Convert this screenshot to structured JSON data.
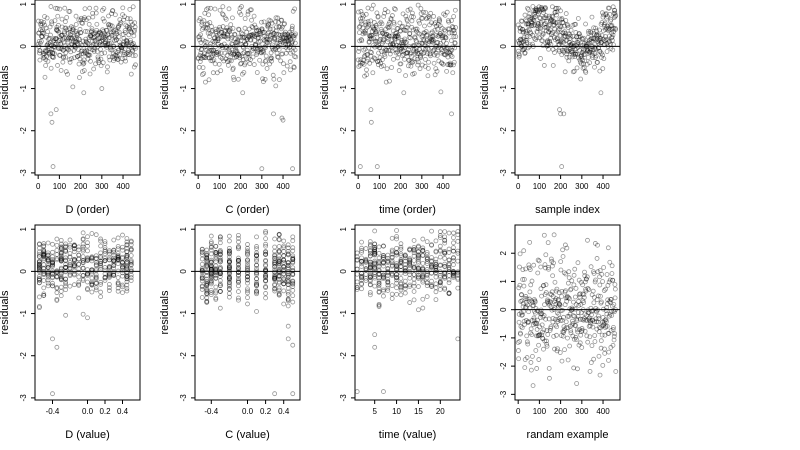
{
  "chart_data": [
    {
      "type": "scatter",
      "id": "p1",
      "xlabel": "D (order)",
      "ylabel": "residuals",
      "xlim": [
        -15,
        480
      ],
      "ylim": [
        -3.05,
        1.1
      ],
      "xticks": [
        0,
        100,
        200,
        300,
        400
      ],
      "xticklabels": [
        "0",
        "100",
        "200",
        "300",
        "400"
      ],
      "yticks": [
        -3,
        -2,
        -1,
        0,
        1
      ],
      "yticklabels": [
        "-3",
        "-2",
        "-1",
        "0",
        "1"
      ],
      "hline": 0,
      "points": {
        "generator": "order",
        "n": 460,
        "xmin": 0,
        "xmax": 460,
        "seed": 11,
        "center": 0.15,
        "spread": 0.35,
        "min": -1.2,
        "max": 0.95
      },
      "outliers": [
        [
          60,
          -1.6
        ],
        [
          65,
          -1.8
        ],
        [
          70,
          -2.85
        ],
        [
          85,
          -1.5
        ],
        [
          215,
          -1.1
        ],
        [
          300,
          -1.0
        ]
      ]
    },
    {
      "type": "scatter",
      "id": "p2",
      "xlabel": "C (order)",
      "ylabel": "residuals",
      "xlim": [
        -15,
        480
      ],
      "ylim": [
        -3.05,
        1.1
      ],
      "xticks": [
        0,
        100,
        200,
        300,
        400
      ],
      "xticklabels": [
        "0",
        "100",
        "200",
        "300",
        "400"
      ],
      "yticks": [
        -3,
        -2,
        -1,
        0,
        1
      ],
      "yticklabels": [
        "-3",
        "-2",
        "-1",
        "0",
        "1"
      ],
      "hline": 0,
      "points": {
        "generator": "order",
        "n": 460,
        "xmin": 0,
        "xmax": 460,
        "seed": 23,
        "center": 0.1,
        "spread": 0.35,
        "min": -1.1,
        "max": 0.95
      },
      "outliers": [
        [
          300,
          -2.9
        ],
        [
          355,
          -1.6
        ],
        [
          395,
          -1.7
        ],
        [
          400,
          -1.75
        ],
        [
          445,
          -2.9
        ],
        [
          210,
          -1.1
        ]
      ]
    },
    {
      "type": "scatter",
      "id": "p3",
      "xlabel": "time (order)",
      "ylabel": "residuals",
      "xlim": [
        -15,
        480
      ],
      "ylim": [
        -3.05,
        1.1
      ],
      "xticks": [
        0,
        100,
        200,
        300,
        400
      ],
      "xticklabels": [
        "0",
        "100",
        "200",
        "300",
        "400"
      ],
      "yticks": [
        -3,
        -2,
        -1,
        0,
        1
      ],
      "yticklabels": [
        "-3",
        "-2",
        "-1",
        "0",
        "1"
      ],
      "hline": 0,
      "points": {
        "generator": "order",
        "n": 460,
        "xmin": 0,
        "xmax": 460,
        "seed": 37,
        "center": 0.1,
        "spread": 0.38,
        "min": -1.2,
        "max": 1.0
      },
      "outliers": [
        [
          10,
          -2.85
        ],
        [
          60,
          -1.5
        ],
        [
          62,
          -1.8
        ],
        [
          90,
          -2.85
        ],
        [
          440,
          -1.6
        ],
        [
          215,
          -1.1
        ]
      ]
    },
    {
      "type": "scatter",
      "id": "p4",
      "xlabel": "sample index",
      "ylabel": "residuals",
      "xlim": [
        -15,
        480
      ],
      "ylim": [
        -3.05,
        1.1
      ],
      "xticks": [
        0,
        100,
        200,
        300,
        400
      ],
      "xticklabels": [
        "0",
        "100",
        "200",
        "300",
        "400"
      ],
      "yticks": [
        -3,
        -2,
        -1,
        0,
        1
      ],
      "yticklabels": [
        "-3",
        "-2",
        "-1",
        "0",
        "1"
      ],
      "hline": 0,
      "points": {
        "generator": "trend",
        "n": 460,
        "xmin": 0,
        "xmax": 460,
        "seed": 51,
        "center": 0.1,
        "spread": 0.3,
        "min": -1.1,
        "max": 0.95
      },
      "outliers": [
        [
          195,
          -1.5
        ],
        [
          200,
          -1.6
        ],
        [
          205,
          -2.85
        ],
        [
          215,
          -1.6
        ],
        [
          390,
          -1.1
        ]
      ]
    },
    {
      "type": "scatter",
      "id": "p5",
      "xlabel": "D (value)",
      "ylabel": "residuals",
      "xlim": [
        -0.6,
        0.6
      ],
      "ylim": [
        -3.05,
        1.1
      ],
      "xticks": [
        -0.4,
        0.0,
        0.2,
        0.4
      ],
      "xticklabels": [
        "-0.4",
        "0.0",
        "0.2",
        "0.4"
      ],
      "yticks": [
        -3,
        -2,
        -1,
        0,
        1
      ],
      "yticklabels": [
        "-3",
        "-2",
        "-1",
        "0",
        "1"
      ],
      "hline": 0,
      "points": {
        "generator": "discrete",
        "n": 460,
        "levels": [
          -0.55,
          -0.5,
          -0.45,
          -0.4,
          -0.35,
          -0.3,
          -0.25,
          -0.2,
          -0.15,
          -0.1,
          -0.05,
          0.0,
          0.05,
          0.1,
          0.15,
          0.2,
          0.25,
          0.3,
          0.35,
          0.4,
          0.45,
          0.5
        ],
        "seed": 67,
        "center": 0.1,
        "spread": 0.33,
        "min": -1.1,
        "max": 0.95
      },
      "outliers": [
        [
          -0.4,
          -1.6
        ],
        [
          -0.35,
          -1.8
        ],
        [
          -0.4,
          -2.9
        ],
        [
          0.0,
          -1.1
        ]
      ]
    },
    {
      "type": "scatter",
      "id": "p6",
      "xlabel": "C (value)",
      "ylabel": "residuals",
      "xlim": [
        -0.58,
        0.58
      ],
      "ylim": [
        -3.05,
        1.1
      ],
      "xticks": [
        -0.4,
        0.0,
        0.2,
        0.4
      ],
      "xticklabels": [
        "-0.4",
        "0.0",
        "0.2",
        "0.4"
      ],
      "yticks": [
        -3,
        -2,
        -1,
        0,
        1
      ],
      "yticklabels": [
        "-3",
        "-2",
        "-1",
        "0",
        "1"
      ],
      "hline": 0,
      "points": {
        "generator": "discrete",
        "n": 460,
        "levels": [
          -0.5,
          -0.45,
          -0.4,
          -0.35,
          -0.3,
          -0.2,
          -0.1,
          0.0,
          0.1,
          0.2,
          0.3,
          0.35,
          0.4,
          0.45,
          0.5
        ],
        "seed": 79,
        "center": 0.05,
        "spread": 0.38,
        "min": -1.1,
        "max": 0.95
      },
      "outliers": [
        [
          0.3,
          -2.9
        ],
        [
          0.45,
          -1.6
        ],
        [
          0.5,
          -1.75
        ],
        [
          0.5,
          -2.9
        ],
        [
          0.45,
          -1.3
        ]
      ]
    },
    {
      "type": "scatter",
      "id": "p7",
      "xlabel": "time (value)",
      "ylabel": "residuals",
      "xlim": [
        0.5,
        24.5
      ],
      "ylim": [
        -3.05,
        1.1
      ],
      "xticks": [
        5,
        10,
        15,
        20
      ],
      "xticklabels": [
        "5",
        "10",
        "15",
        "20"
      ],
      "yticks": [
        -3,
        -2,
        -1,
        0,
        1
      ],
      "yticklabels": [
        "-3",
        "-2",
        "-1",
        "0",
        "1"
      ],
      "hline": 0,
      "points": {
        "generator": "discrete",
        "n": 460,
        "levels": [
          1,
          2,
          3,
          4,
          5,
          6,
          7,
          8,
          9,
          10,
          11,
          12,
          13,
          14,
          15,
          16,
          17,
          18,
          19,
          20,
          21,
          22,
          23,
          24
        ],
        "seed": 91,
        "center": 0.1,
        "spread": 0.36,
        "min": -1.1,
        "max": 1.0
      },
      "outliers": [
        [
          1,
          -2.85
        ],
        [
          5,
          -1.5
        ],
        [
          5,
          -1.8
        ],
        [
          7,
          -2.85
        ],
        [
          24,
          -1.6
        ]
      ]
    },
    {
      "type": "scatter",
      "id": "p8",
      "xlabel": "randam example",
      "ylabel": "residuals",
      "xlim": [
        -15,
        480
      ],
      "ylim": [
        -3.2,
        3.0
      ],
      "xticks": [
        0,
        100,
        200,
        300,
        400
      ],
      "xticklabels": [
        "0",
        "100",
        "200",
        "300",
        "400"
      ],
      "yticks": [
        -3,
        -2,
        -1,
        0,
        1,
        2
      ],
      "yticklabels": [
        "-3",
        "-2",
        "-1",
        "0",
        "1",
        "2"
      ],
      "hline": 0,
      "points": {
        "generator": "order",
        "n": 460,
        "xmin": 0,
        "xmax": 460,
        "seed": 103,
        "center": 0.0,
        "spread": 1.0,
        "min": -2.9,
        "max": 2.8
      },
      "outliers": []
    }
  ]
}
